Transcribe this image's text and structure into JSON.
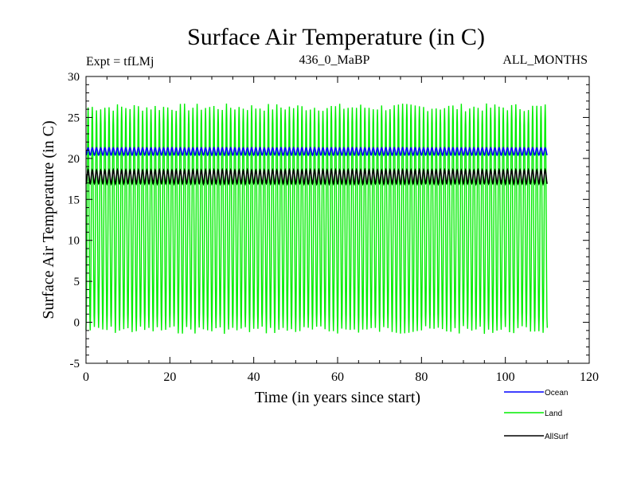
{
  "chart_data": {
    "type": "line",
    "title": "Surface Air Temperature (in C)",
    "subtitle_left": "Expt = tfLMj",
    "subtitle_center": "436_0_MaBP",
    "subtitle_right": "ALL_MONTHS",
    "xlabel": "Time (in years since start)",
    "ylabel": "Surface Air Temperature (in C)",
    "xlim": [
      0,
      120
    ],
    "ylim": [
      -5,
      30
    ],
    "xticks": [
      0,
      20,
      40,
      60,
      80,
      100,
      120
    ],
    "yticks": [
      -5,
      0,
      5,
      10,
      15,
      20,
      25,
      30
    ],
    "x_end": 110,
    "legend_position": "bottom-right",
    "series": [
      {
        "name": "Ocean",
        "color": "#0000ff",
        "cycle_min": 20.4,
        "cycle_max": 21.3,
        "period_years": 1
      },
      {
        "name": "Land",
        "color": "#00ee00",
        "cycle_min": -1.0,
        "cycle_max": 26.3,
        "period_years": 1
      },
      {
        "name": "AllSurf",
        "color": "#000000",
        "cycle_min": 16.9,
        "cycle_max": 18.6,
        "period_years": 1
      }
    ]
  }
}
